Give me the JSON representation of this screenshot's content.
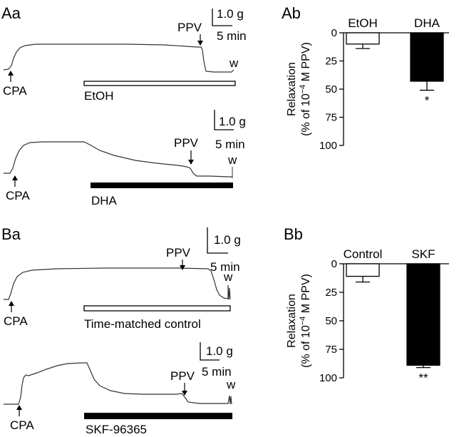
{
  "panels": {
    "Aa": "Aa",
    "Ab": "Ab",
    "Ba": "Ba",
    "Bb": "Bb"
  },
  "traces": {
    "Aa_top": {
      "agent": "CPA",
      "drug": "PPV",
      "wash": "w",
      "bar_label": "EtOH",
      "bar_style": "open",
      "scale_y": "1.0 g",
      "scale_x": "5 min"
    },
    "Aa_bottom": {
      "agent": "CPA",
      "drug": "PPV",
      "wash": "w",
      "bar_label": "DHA",
      "bar_style": "filled",
      "scale_y": "1.0 g",
      "scale_x": "5 min"
    },
    "Ba_top": {
      "agent": "CPA",
      "drug": "PPV",
      "wash": "w",
      "bar_label": "Time-matched control",
      "bar_style": "open",
      "scale_y": "1.0 g",
      "scale_x": "5 min"
    },
    "Ba_bottom": {
      "agent": "CPA",
      "drug": "PPV",
      "wash": "w",
      "bar_label": "SKF-96365",
      "bar_style": "filled",
      "scale_y": "1.0 g",
      "scale_x": "5 min"
    }
  },
  "chart_data": [
    {
      "panel": "Ab",
      "type": "bar",
      "categories": [
        "EtOH",
        "DHA"
      ],
      "values": [
        10,
        43
      ],
      "errors": [
        4,
        8
      ],
      "colors": [
        "#ffffff",
        "#000000"
      ],
      "significance": [
        "",
        "*"
      ],
      "ylabel_line1": "Relaxation",
      "ylabel_line2": "(% of 10",
      "ylabel_exp": "−4",
      "ylabel_line2b": " M PPV)",
      "ylim": [
        0,
        100
      ],
      "yticks": [
        "0",
        "25",
        "50",
        "75",
        "100"
      ],
      "y_inverted": true
    },
    {
      "panel": "Bb",
      "type": "bar",
      "categories": [
        "Control",
        "SKF"
      ],
      "values": [
        11,
        89
      ],
      "errors": [
        5,
        2
      ],
      "colors": [
        "#ffffff",
        "#000000"
      ],
      "significance": [
        "",
        "**"
      ],
      "ylabel_line1": "Relaxation",
      "ylabel_line2": "(% of 10",
      "ylabel_exp": "−4",
      "ylabel_line2b": " M PPV)",
      "ylim": [
        0,
        100
      ],
      "yticks": [
        "0",
        "25",
        "50",
        "75",
        "100"
      ],
      "y_inverted": true
    }
  ]
}
